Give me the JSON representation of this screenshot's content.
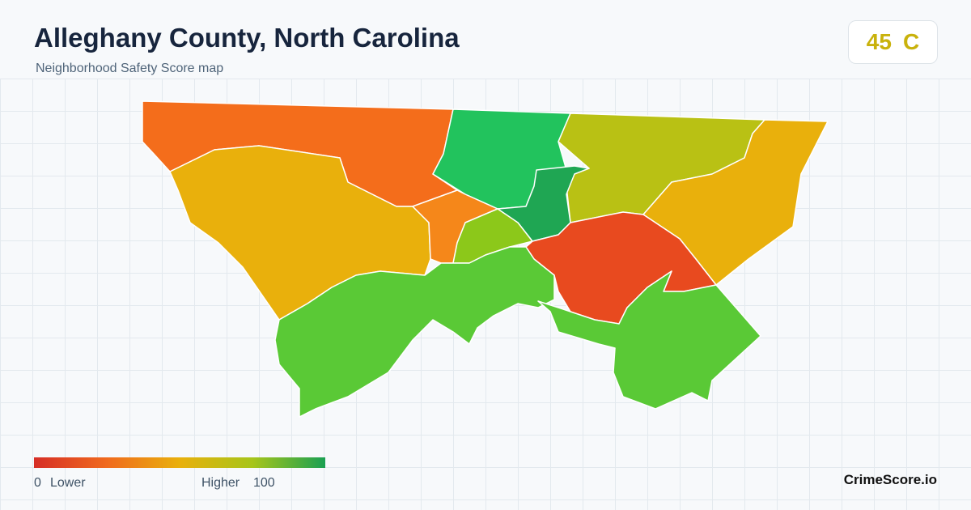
{
  "header": {
    "title": "Alleghany County, North Carolina",
    "subtitle": "Neighborhood Safety Score map"
  },
  "score": {
    "value": 45,
    "grade": "C"
  },
  "legend": {
    "min": 0,
    "min_label": "Lower",
    "max_label": "Higher",
    "max": 100
  },
  "footer": {
    "brand": "CrimeScore.io"
  }
}
